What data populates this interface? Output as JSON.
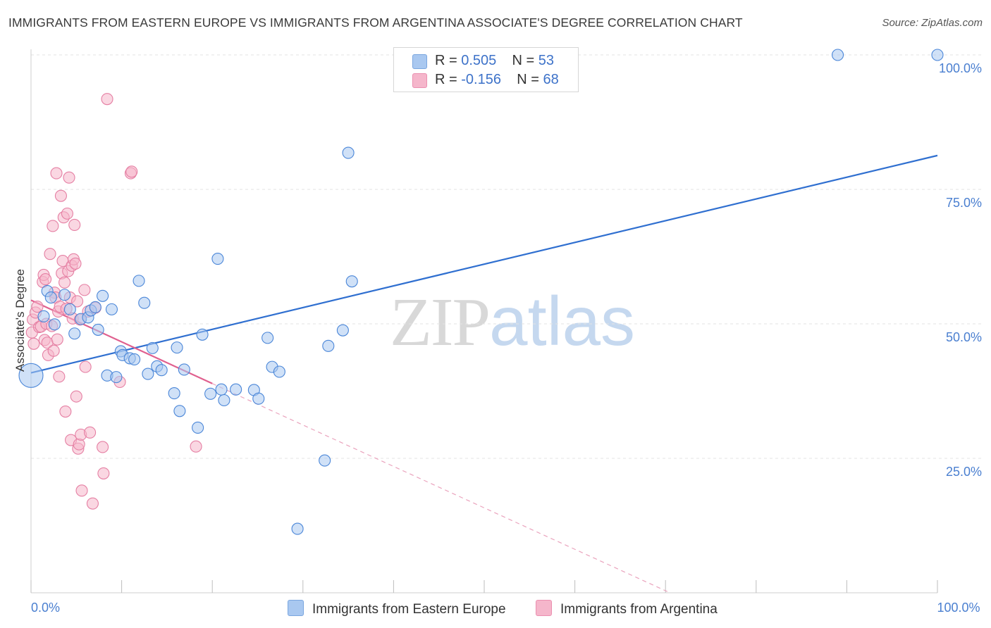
{
  "title": "IMMIGRANTS FROM EASTERN EUROPE VS IMMIGRANTS FROM ARGENTINA ASSOCIATE'S DEGREE CORRELATION CHART",
  "source": "Source: ZipAtlas.com",
  "watermark": {
    "part1": "ZIP",
    "part2": "atlas"
  },
  "legend": {
    "rows": [
      {
        "r_label": "R = ",
        "r_value": "0.505",
        "n_label": "N = ",
        "n_value": "53",
        "color": "#a9c8f0"
      },
      {
        "r_label": "R = ",
        "r_value": "-0.156",
        "n_label": "N = ",
        "n_value": "68",
        "color": "#f5b6cb"
      }
    ]
  },
  "bottom_legend": {
    "series1": "Immigrants from Eastern Europe",
    "series2": "Immigrants from Argentina"
  },
  "chart_data": {
    "type": "scatter",
    "title": "IMMIGRANTS FROM EASTERN EUROPE VS IMMIGRANTS FROM ARGENTINA ASSOCIATE'S DEGREE CORRELATION CHART",
    "xlabel": "",
    "ylabel": "Associate's Degree",
    "xlim": [
      0,
      100
    ],
    "ylim": [
      0,
      103
    ],
    "x_tick_labels": {
      "0": "0.0%",
      "100": "100.0%"
    },
    "y_ticks": [
      25,
      50,
      75,
      100
    ],
    "y_tick_labels": [
      "25.0%",
      "50.0%",
      "75.0%",
      "100.0%"
    ],
    "grid": true,
    "legend_position": "top-center",
    "series": [
      {
        "name": "Immigrants from Eastern Europe",
        "color": "#a9c8f0",
        "stroke": "#4a86d8",
        "trend_color": "#2f6fd0",
        "trend": {
          "x0": 0,
          "y0": 40.9,
          "x1": 100,
          "y1": 81.3
        },
        "points": [
          [
            0.0,
            40.4
          ],
          [
            1.8,
            56.1
          ],
          [
            1.4,
            51.4
          ],
          [
            2.2,
            54.9
          ],
          [
            2.6,
            49.9
          ],
          [
            3.7,
            55.4
          ],
          [
            4.3,
            52.7
          ],
          [
            4.8,
            48.2
          ],
          [
            5.5,
            50.9
          ],
          [
            6.3,
            51.2
          ],
          [
            6.6,
            52.5
          ],
          [
            7.1,
            53.1
          ],
          [
            7.4,
            48.9
          ],
          [
            7.9,
            55.2
          ],
          [
            8.4,
            40.4
          ],
          [
            8.9,
            52.7
          ],
          [
            9.4,
            40.1
          ],
          [
            9.9,
            44.9
          ],
          [
            10.1,
            44.2
          ],
          [
            10.9,
            43.6
          ],
          [
            11.4,
            43.4
          ],
          [
            11.9,
            58.0
          ],
          [
            12.5,
            53.9
          ],
          [
            12.9,
            40.7
          ],
          [
            13.4,
            45.5
          ],
          [
            13.9,
            42.1
          ],
          [
            14.4,
            41.4
          ],
          [
            15.8,
            37.1
          ],
          [
            16.1,
            45.6
          ],
          [
            16.4,
            33.8
          ],
          [
            16.9,
            41.5
          ],
          [
            18.4,
            30.7
          ],
          [
            18.9,
            48.0
          ],
          [
            19.8,
            37.0
          ],
          [
            20.6,
            62.1
          ],
          [
            21.0,
            37.8
          ],
          [
            21.3,
            35.8
          ],
          [
            22.6,
            37.8
          ],
          [
            24.6,
            37.7
          ],
          [
            25.1,
            36.1
          ],
          [
            26.1,
            47.4
          ],
          [
            26.6,
            42.0
          ],
          [
            27.4,
            41.1
          ],
          [
            29.4,
            11.9
          ],
          [
            32.4,
            24.6
          ],
          [
            32.8,
            45.9
          ],
          [
            34.4,
            48.8
          ],
          [
            35.0,
            81.8
          ],
          [
            35.4,
            57.9
          ],
          [
            89.0,
            100.0
          ],
          [
            100.0,
            100.0
          ]
        ]
      },
      {
        "name": "Immigrants from Argentina",
        "color": "#f5b6cb",
        "stroke": "#e57fa3",
        "trend_color": "#e0608f",
        "trend": {
          "x0": 0,
          "y0": 54.4,
          "x1": 20,
          "y1": 38.9
        },
        "trend_dashed": {
          "x0": 20,
          "y0": 38.9,
          "x1": 70.5,
          "y1": 0
        },
        "points": [
          [
            0.1,
            48.4
          ],
          [
            0.2,
            50.8
          ],
          [
            0.3,
            46.3
          ],
          [
            0.5,
            52.1
          ],
          [
            0.7,
            53.2
          ],
          [
            0.9,
            49.4
          ],
          [
            1.1,
            49.5
          ],
          [
            1.3,
            57.8
          ],
          [
            1.4,
            59.1
          ],
          [
            1.5,
            47.0
          ],
          [
            1.6,
            58.3
          ],
          [
            1.7,
            50.0
          ],
          [
            1.8,
            46.5
          ],
          [
            1.9,
            44.2
          ],
          [
            2.1,
            63.0
          ],
          [
            2.3,
            49.6
          ],
          [
            2.4,
            68.2
          ],
          [
            2.5,
            45.0
          ],
          [
            2.6,
            55.8
          ],
          [
            2.7,
            54.9
          ],
          [
            2.8,
            78.0
          ],
          [
            2.9,
            47.1
          ],
          [
            3.0,
            52.3
          ],
          [
            3.1,
            40.2
          ],
          [
            3.2,
            53.2
          ],
          [
            3.3,
            73.8
          ],
          [
            3.4,
            59.4
          ],
          [
            3.5,
            61.7
          ],
          [
            3.6,
            69.8
          ],
          [
            3.7,
            57.7
          ],
          [
            3.8,
            33.7
          ],
          [
            3.9,
            52.8
          ],
          [
            4.0,
            70.5
          ],
          [
            4.1,
            59.8
          ],
          [
            4.2,
            77.2
          ],
          [
            4.3,
            54.9
          ],
          [
            4.4,
            28.4
          ],
          [
            4.5,
            60.8
          ],
          [
            4.6,
            51.0
          ],
          [
            4.7,
            62.0
          ],
          [
            4.8,
            68.4
          ],
          [
            4.9,
            61.2
          ],
          [
            5.0,
            36.5
          ],
          [
            5.1,
            54.2
          ],
          [
            5.2,
            26.8
          ],
          [
            5.3,
            27.6
          ],
          [
            5.4,
            50.8
          ],
          [
            5.5,
            29.4
          ],
          [
            5.6,
            19.0
          ],
          [
            5.9,
            56.3
          ],
          [
            6.0,
            42.0
          ],
          [
            6.3,
            52.3
          ],
          [
            6.5,
            29.8
          ],
          [
            6.8,
            16.6
          ],
          [
            7.1,
            53.0
          ],
          [
            7.9,
            27.1
          ],
          [
            8.0,
            22.2
          ],
          [
            8.4,
            91.8
          ],
          [
            9.8,
            39.2
          ],
          [
            11.0,
            78.0
          ],
          [
            11.1,
            78.3
          ],
          [
            18.2,
            27.2
          ]
        ]
      }
    ]
  }
}
